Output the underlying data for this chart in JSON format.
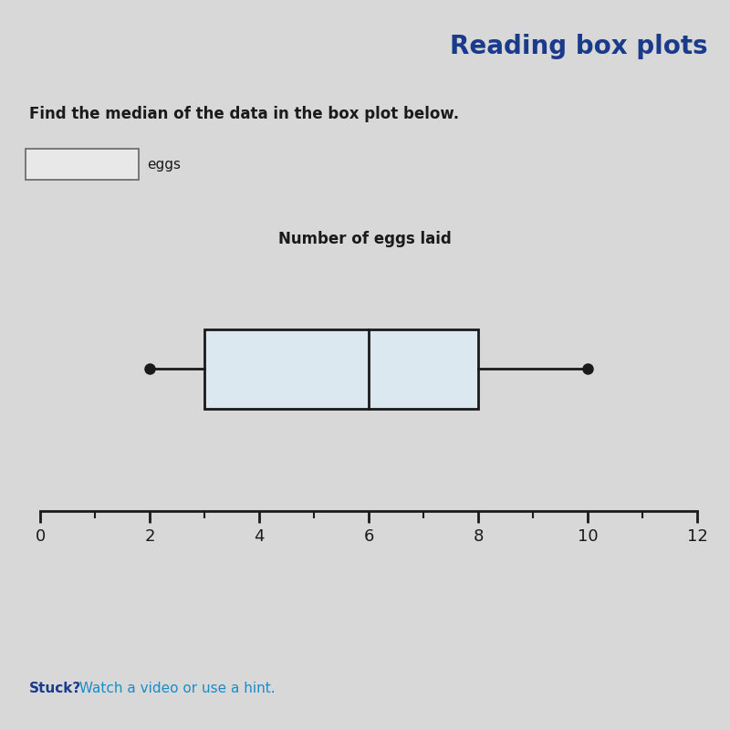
{
  "title": "Reading box plots",
  "title_color": "#1a3a8c",
  "title_fontsize": 20,
  "title_fontweight": "bold",
  "question_text": "Find the median of the data in the box plot below.",
  "question_fontsize": 12,
  "question_fontweight": "bold",
  "chart_title": "Number of eggs laid",
  "chart_title_fontsize": 12,
  "chart_title_fontweight": "bold",
  "xlabel_text": "eggs",
  "stuck_text": "Stuck?",
  "hint_text": " Watch a video or use a hint.",
  "stuck_color": "#1a3a8c",
  "hint_color": "#1a8cc8",
  "whisker_min": 2,
  "q1": 3,
  "median": 6,
  "q3": 8,
  "whisker_max": 10,
  "xmin": 0,
  "xmax": 12,
  "xticks": [
    0,
    2,
    4,
    6,
    8,
    10,
    12
  ],
  "bg_color": "#d8d8d8",
  "header_bg": "#c8c8c8",
  "box_fill": "#dce8f0",
  "box_edge_color": "#1a1a1a",
  "whisker_color": "#1a1a1a",
  "dot_color": "#1a1a1a",
  "answer_box_color": "#e8e8e8"
}
